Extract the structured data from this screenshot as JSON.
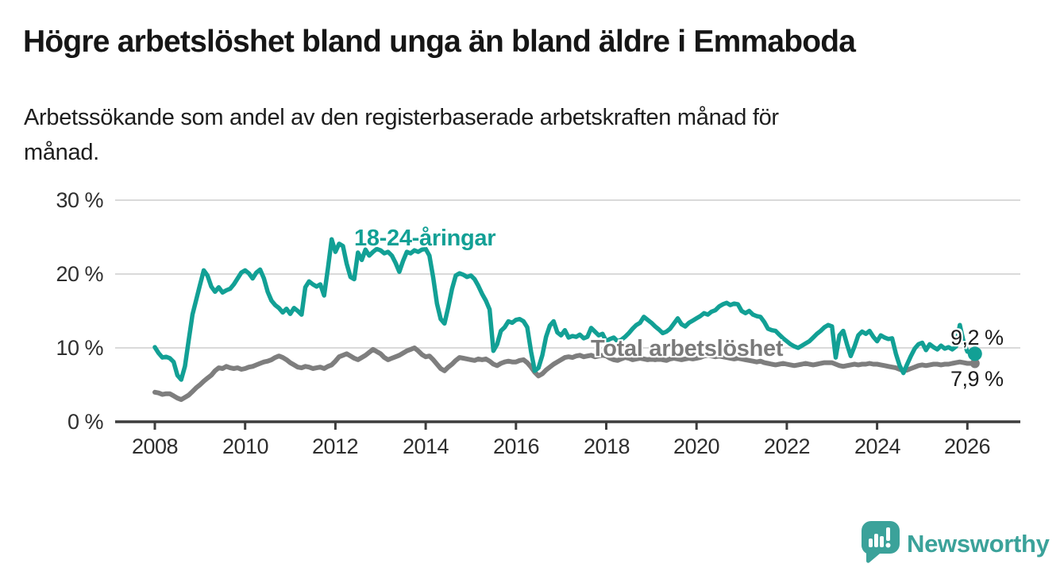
{
  "header": {
    "title": "Högre arbetslöshet bland unga än bland äldre i Emmaboda",
    "subtitle_lines": [
      "Arbetssökande som andel av den registerbaserade arbetskraften månad för",
      "månad."
    ]
  },
  "footer": {
    "brand": "Newsworthy",
    "brand_color": "#3ba29a",
    "logo_icon": "speech-bubble-bar-chart-exclamation"
  },
  "chart_data": {
    "type": "line",
    "title": "Högre arbetslöshet bland unga än bland äldre i Emmaboda",
    "subtitle": "Arbetssökande som andel av den registerbaserade arbetskraften månad för månad.",
    "xlabel": "",
    "ylabel": "",
    "ylim": [
      0,
      30
    ],
    "grid": "horizontal",
    "legend_position": "inline-labels",
    "x_unit": "month",
    "x_range": {
      "start": "2008-01",
      "end": "2026-03"
    },
    "y_ticks": [
      "30 %",
      "20 %",
      "10 %",
      "0 %"
    ],
    "y_tick_values": [
      30,
      20,
      10,
      0
    ],
    "x_ticks": [
      "2008",
      "2010",
      "2012",
      "2014",
      "2016",
      "2018",
      "2020",
      "2022",
      "2024",
      "2026"
    ],
    "series": [
      {
        "name": "18-24-åringar",
        "color": "#12a095",
        "end_label": "9,2 %",
        "end_value": 9.2,
        "values": [
          10.1,
          9.3,
          8.7,
          8.8,
          8.6,
          8.1,
          6.3,
          5.7,
          7.5,
          11.0,
          14.5,
          16.5,
          18.5,
          20.5,
          19.8,
          18.3,
          17.6,
          18.2,
          17.5,
          17.8,
          18.0,
          18.6,
          19.4,
          20.2,
          20.5,
          20.1,
          19.4,
          20.2,
          20.6,
          19.4,
          17.6,
          16.4,
          15.8,
          15.4,
          14.8,
          15.3,
          14.6,
          15.4,
          15.0,
          14.5,
          18.2,
          19.0,
          18.6,
          18.3,
          18.6,
          17.1,
          20.7,
          24.7,
          23.0,
          24.1,
          23.8,
          21.4,
          19.6,
          19.3,
          22.9,
          21.9,
          23.3,
          22.5,
          23.0,
          23.4,
          23.2,
          22.8,
          23.0,
          22.5,
          21.5,
          20.3,
          21.8,
          23.0,
          22.8,
          23.2,
          23.0,
          23.3,
          23.4,
          22.5,
          19.5,
          16.0,
          13.9,
          13.3,
          15.5,
          18.0,
          19.8,
          20.1,
          19.9,
          19.6,
          19.8,
          19.3,
          18.4,
          17.3,
          16.4,
          15.2,
          9.6,
          10.5,
          12.3,
          12.8,
          13.6,
          13.4,
          13.8,
          13.9,
          13.6,
          12.8,
          9.5,
          6.9,
          7.3,
          9.0,
          11.5,
          13.0,
          13.6,
          12.1,
          11.7,
          12.4,
          11.4,
          11.6,
          11.5,
          11.8,
          11.3,
          11.5,
          12.7,
          12.2,
          11.7,
          11.9,
          10.9,
          11.2,
          11.4,
          10.9,
          11.1,
          11.5,
          12.0,
          12.6,
          13.1,
          13.4,
          14.2,
          13.8,
          13.4,
          12.9,
          12.5,
          12.0,
          12.2,
          12.6,
          13.3,
          14.0,
          13.2,
          12.9,
          13.4,
          13.7,
          14.0,
          14.3,
          14.7,
          14.5,
          14.9,
          15.1,
          15.6,
          15.9,
          16.1,
          15.8,
          16.0,
          15.9,
          15.0,
          14.7,
          15.0,
          14.5,
          14.3,
          14.2,
          13.5,
          12.6,
          12.4,
          12.3,
          11.8,
          11.3,
          10.9,
          10.5,
          10.2,
          10.0,
          10.3,
          10.6,
          10.9,
          11.4,
          11.9,
          12.3,
          12.8,
          13.1,
          12.9,
          8.7,
          11.7,
          12.3,
          10.5,
          8.9,
          10.2,
          11.7,
          12.2,
          11.9,
          12.3,
          11.5,
          10.9,
          11.7,
          11.4,
          11.2,
          11.3,
          9.2,
          7.6,
          6.6,
          7.8,
          8.9,
          9.9,
          10.5,
          10.7,
          9.7,
          10.5,
          10.1,
          9.8,
          10.3,
          9.9,
          10.1,
          9.8,
          10.2,
          13.1,
          10.8,
          9.5,
          9.3,
          9.2
        ]
      },
      {
        "name": "Total arbetslöshet",
        "color": "#7e7e7e",
        "end_label": "7,9 %",
        "end_value": 7.9,
        "values": [
          4.0,
          3.9,
          3.7,
          3.8,
          3.8,
          3.5,
          3.2,
          3.0,
          3.3,
          3.6,
          4.1,
          4.6,
          5.0,
          5.5,
          5.9,
          6.3,
          6.9,
          7.3,
          7.2,
          7.5,
          7.3,
          7.2,
          7.3,
          7.1,
          7.2,
          7.4,
          7.5,
          7.7,
          7.9,
          8.1,
          8.2,
          8.4,
          8.7,
          8.9,
          8.7,
          8.4,
          8.0,
          7.7,
          7.4,
          7.3,
          7.5,
          7.4,
          7.2,
          7.3,
          7.4,
          7.2,
          7.5,
          7.7,
          8.2,
          8.8,
          9.0,
          9.2,
          8.9,
          8.6,
          8.4,
          8.7,
          9.0,
          9.4,
          9.8,
          9.5,
          9.2,
          8.7,
          8.4,
          8.6,
          8.8,
          9.0,
          9.3,
          9.6,
          9.8,
          10.0,
          9.6,
          9.1,
          8.8,
          8.9,
          8.4,
          7.8,
          7.2,
          6.9,
          7.4,
          7.8,
          8.3,
          8.7,
          8.6,
          8.5,
          8.4,
          8.3,
          8.5,
          8.4,
          8.5,
          8.2,
          7.8,
          7.6,
          7.9,
          8.1,
          8.2,
          8.1,
          8.1,
          8.3,
          8.4,
          8.0,
          7.4,
          6.7,
          6.2,
          6.5,
          7.0,
          7.4,
          7.8,
          8.1,
          8.4,
          8.7,
          8.8,
          8.7,
          8.9,
          9.0,
          8.8,
          8.9,
          9.0,
          8.8,
          8.9,
          9.0,
          8.9,
          8.6,
          8.4,
          8.3,
          8.5,
          8.7,
          8.6,
          8.4,
          8.5,
          8.6,
          8.5,
          8.4,
          8.5,
          8.4,
          8.5,
          8.4,
          8.3,
          8.5,
          8.6,
          8.5,
          8.4,
          8.5,
          8.6,
          8.5,
          8.6,
          8.7,
          8.9,
          9.0,
          8.9,
          8.8,
          8.9,
          8.8,
          8.7,
          8.6,
          8.5,
          8.6,
          8.5,
          8.4,
          8.3,
          8.2,
          8.1,
          8.2,
          8.0,
          7.9,
          7.8,
          7.7,
          7.8,
          7.9,
          7.8,
          7.7,
          7.6,
          7.7,
          7.8,
          7.9,
          7.8,
          7.7,
          7.8,
          7.9,
          8.0,
          8.0,
          8.0,
          7.8,
          7.6,
          7.5,
          7.6,
          7.7,
          7.8,
          7.7,
          7.8,
          7.8,
          7.9,
          7.8,
          7.8,
          7.7,
          7.6,
          7.5,
          7.4,
          7.3,
          7.1,
          6.9,
          7.0,
          7.2,
          7.4,
          7.6,
          7.7,
          7.6,
          7.7,
          7.8,
          7.8,
          7.7,
          7.8,
          7.8,
          7.9,
          8.0,
          8.1,
          8.0,
          7.9,
          7.9,
          7.9
        ]
      }
    ]
  }
}
